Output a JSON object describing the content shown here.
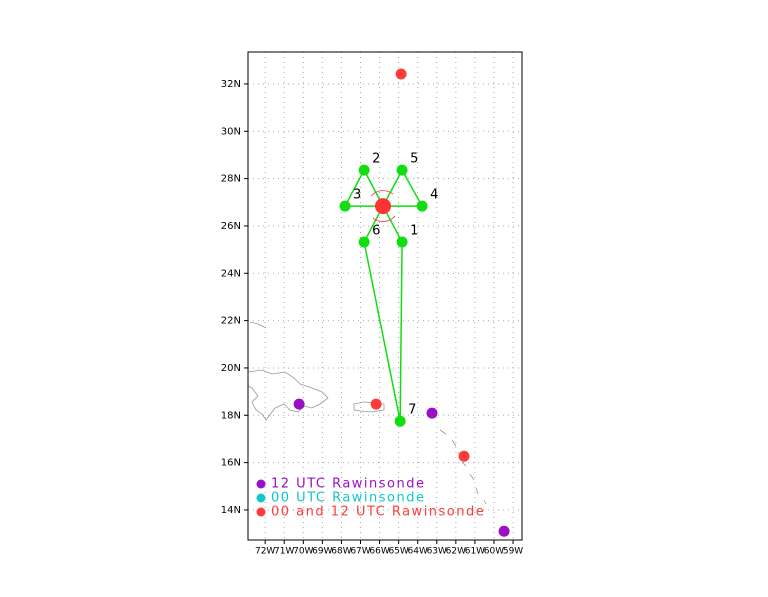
{
  "map": {
    "xlim": [
      -72.9,
      -58.53
    ],
    "ylim": [
      12.73,
      33.35
    ],
    "xticks": [
      {
        "value": -72,
        "label": "72W"
      },
      {
        "value": -71,
        "label": "71W"
      },
      {
        "value": -70,
        "label": "70W"
      },
      {
        "value": -69,
        "label": "69W"
      },
      {
        "value": -68,
        "label": "68W"
      },
      {
        "value": -67,
        "label": "67W"
      },
      {
        "value": -66,
        "label": "66W"
      },
      {
        "value": -65,
        "label": "65W"
      },
      {
        "value": -64,
        "label": "64W"
      },
      {
        "value": -63,
        "label": "63W"
      },
      {
        "value": -62,
        "label": "62W"
      },
      {
        "value": -61,
        "label": "61W"
      },
      {
        "value": -60,
        "label": "60W"
      },
      {
        "value": -59,
        "label": "59W"
      }
    ],
    "yticks": [
      {
        "value": 14,
        "label": "14N"
      },
      {
        "value": 16,
        "label": "16N"
      },
      {
        "value": 18,
        "label": "18N"
      },
      {
        "value": 20,
        "label": "20N"
      },
      {
        "value": 22,
        "label": "22N"
      },
      {
        "value": 24,
        "label": "24N"
      },
      {
        "value": 26,
        "label": "26N"
      },
      {
        "value": 28,
        "label": "28N"
      },
      {
        "value": 30,
        "label": "30N"
      },
      {
        "value": 32,
        "label": "32N"
      }
    ],
    "grid": true,
    "storm_center": {
      "lon": -65.82,
      "lat": 26.84,
      "color": "#ff3333"
    },
    "flight_points": {
      "color": "#11dd11",
      "labels": [
        "1",
        "2",
        "3",
        "4",
        "5",
        "6",
        "7"
      ],
      "lon": [
        -64.82,
        -66.81,
        -67.81,
        -63.77,
        -64.82,
        -66.81,
        -64.92
      ],
      "lat": [
        25.32,
        28.36,
        26.84,
        26.84,
        28.36,
        25.32,
        17.75
      ]
    },
    "stations": [
      {
        "name": "12 UTC Rawinsonde",
        "color": "#9a10c8",
        "lon": [
          -70.22,
          -63.25,
          -59.47
        ],
        "lat": [
          18.47,
          18.09,
          13.1
        ]
      },
      {
        "name": "00 UTC Rawinsonde",
        "color": "#10c8c8",
        "lon": [],
        "lat": []
      },
      {
        "name": "00 and 12 UTC Rawinsonde",
        "color": "#ff3c3c",
        "lon": [
          -64.87,
          -66.18,
          -61.57
        ],
        "lat": [
          32.42,
          18.47,
          16.27
        ]
      }
    ]
  }
}
